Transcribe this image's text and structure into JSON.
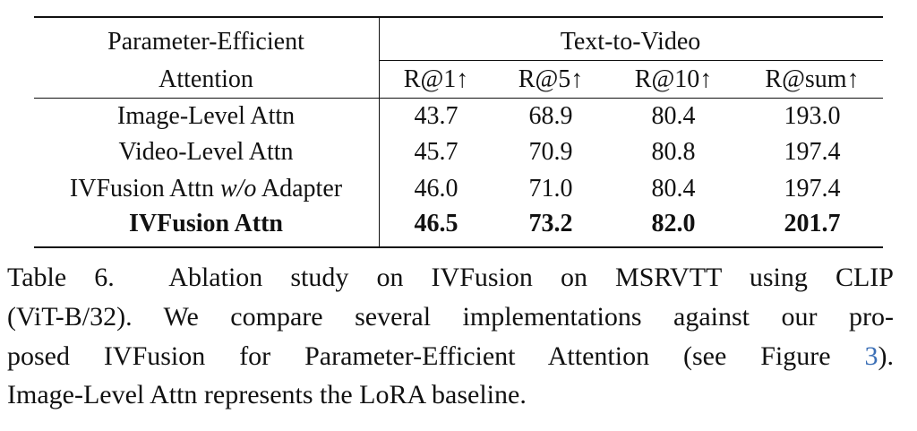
{
  "table": {
    "header": {
      "row_label": [
        "Parameter-Efficient",
        "Attention"
      ],
      "group": "Text-to-Video",
      "columns": [
        "R@1↑",
        "R@5↑",
        "R@10↑",
        "R@sum↑"
      ]
    },
    "rows": [
      {
        "label": [
          "Image-Level Attn"
        ],
        "values": [
          "43.7",
          "68.9",
          "80.4",
          "193.0"
        ]
      },
      {
        "label": [
          "Video-Level Attn"
        ],
        "values": [
          "45.7",
          "70.9",
          "80.8",
          "197.4"
        ]
      },
      {
        "label": [
          "IVFusion Attn ",
          "w/o",
          " Adapter"
        ],
        "values": [
          "46.0",
          "71.0",
          "80.4",
          "197.4"
        ]
      },
      {
        "label": [
          "IVFusion Attn"
        ],
        "values": [
          "46.5",
          "73.2",
          "82.0",
          "201.7"
        ],
        "bold": true
      }
    ]
  },
  "caption": {
    "label": "Table 6.",
    "lines": [
      "Ablation study on IVFusion on MSRVTT using CLIP",
      "(ViT-B/32). We compare several implementations against our pro-",
      [
        "posed IVFusion for Parameter-Efficient Attention (see Figure ",
        "3",
        ")."
      ],
      "Image-Level Attn represents the LoRA baseline."
    ]
  }
}
